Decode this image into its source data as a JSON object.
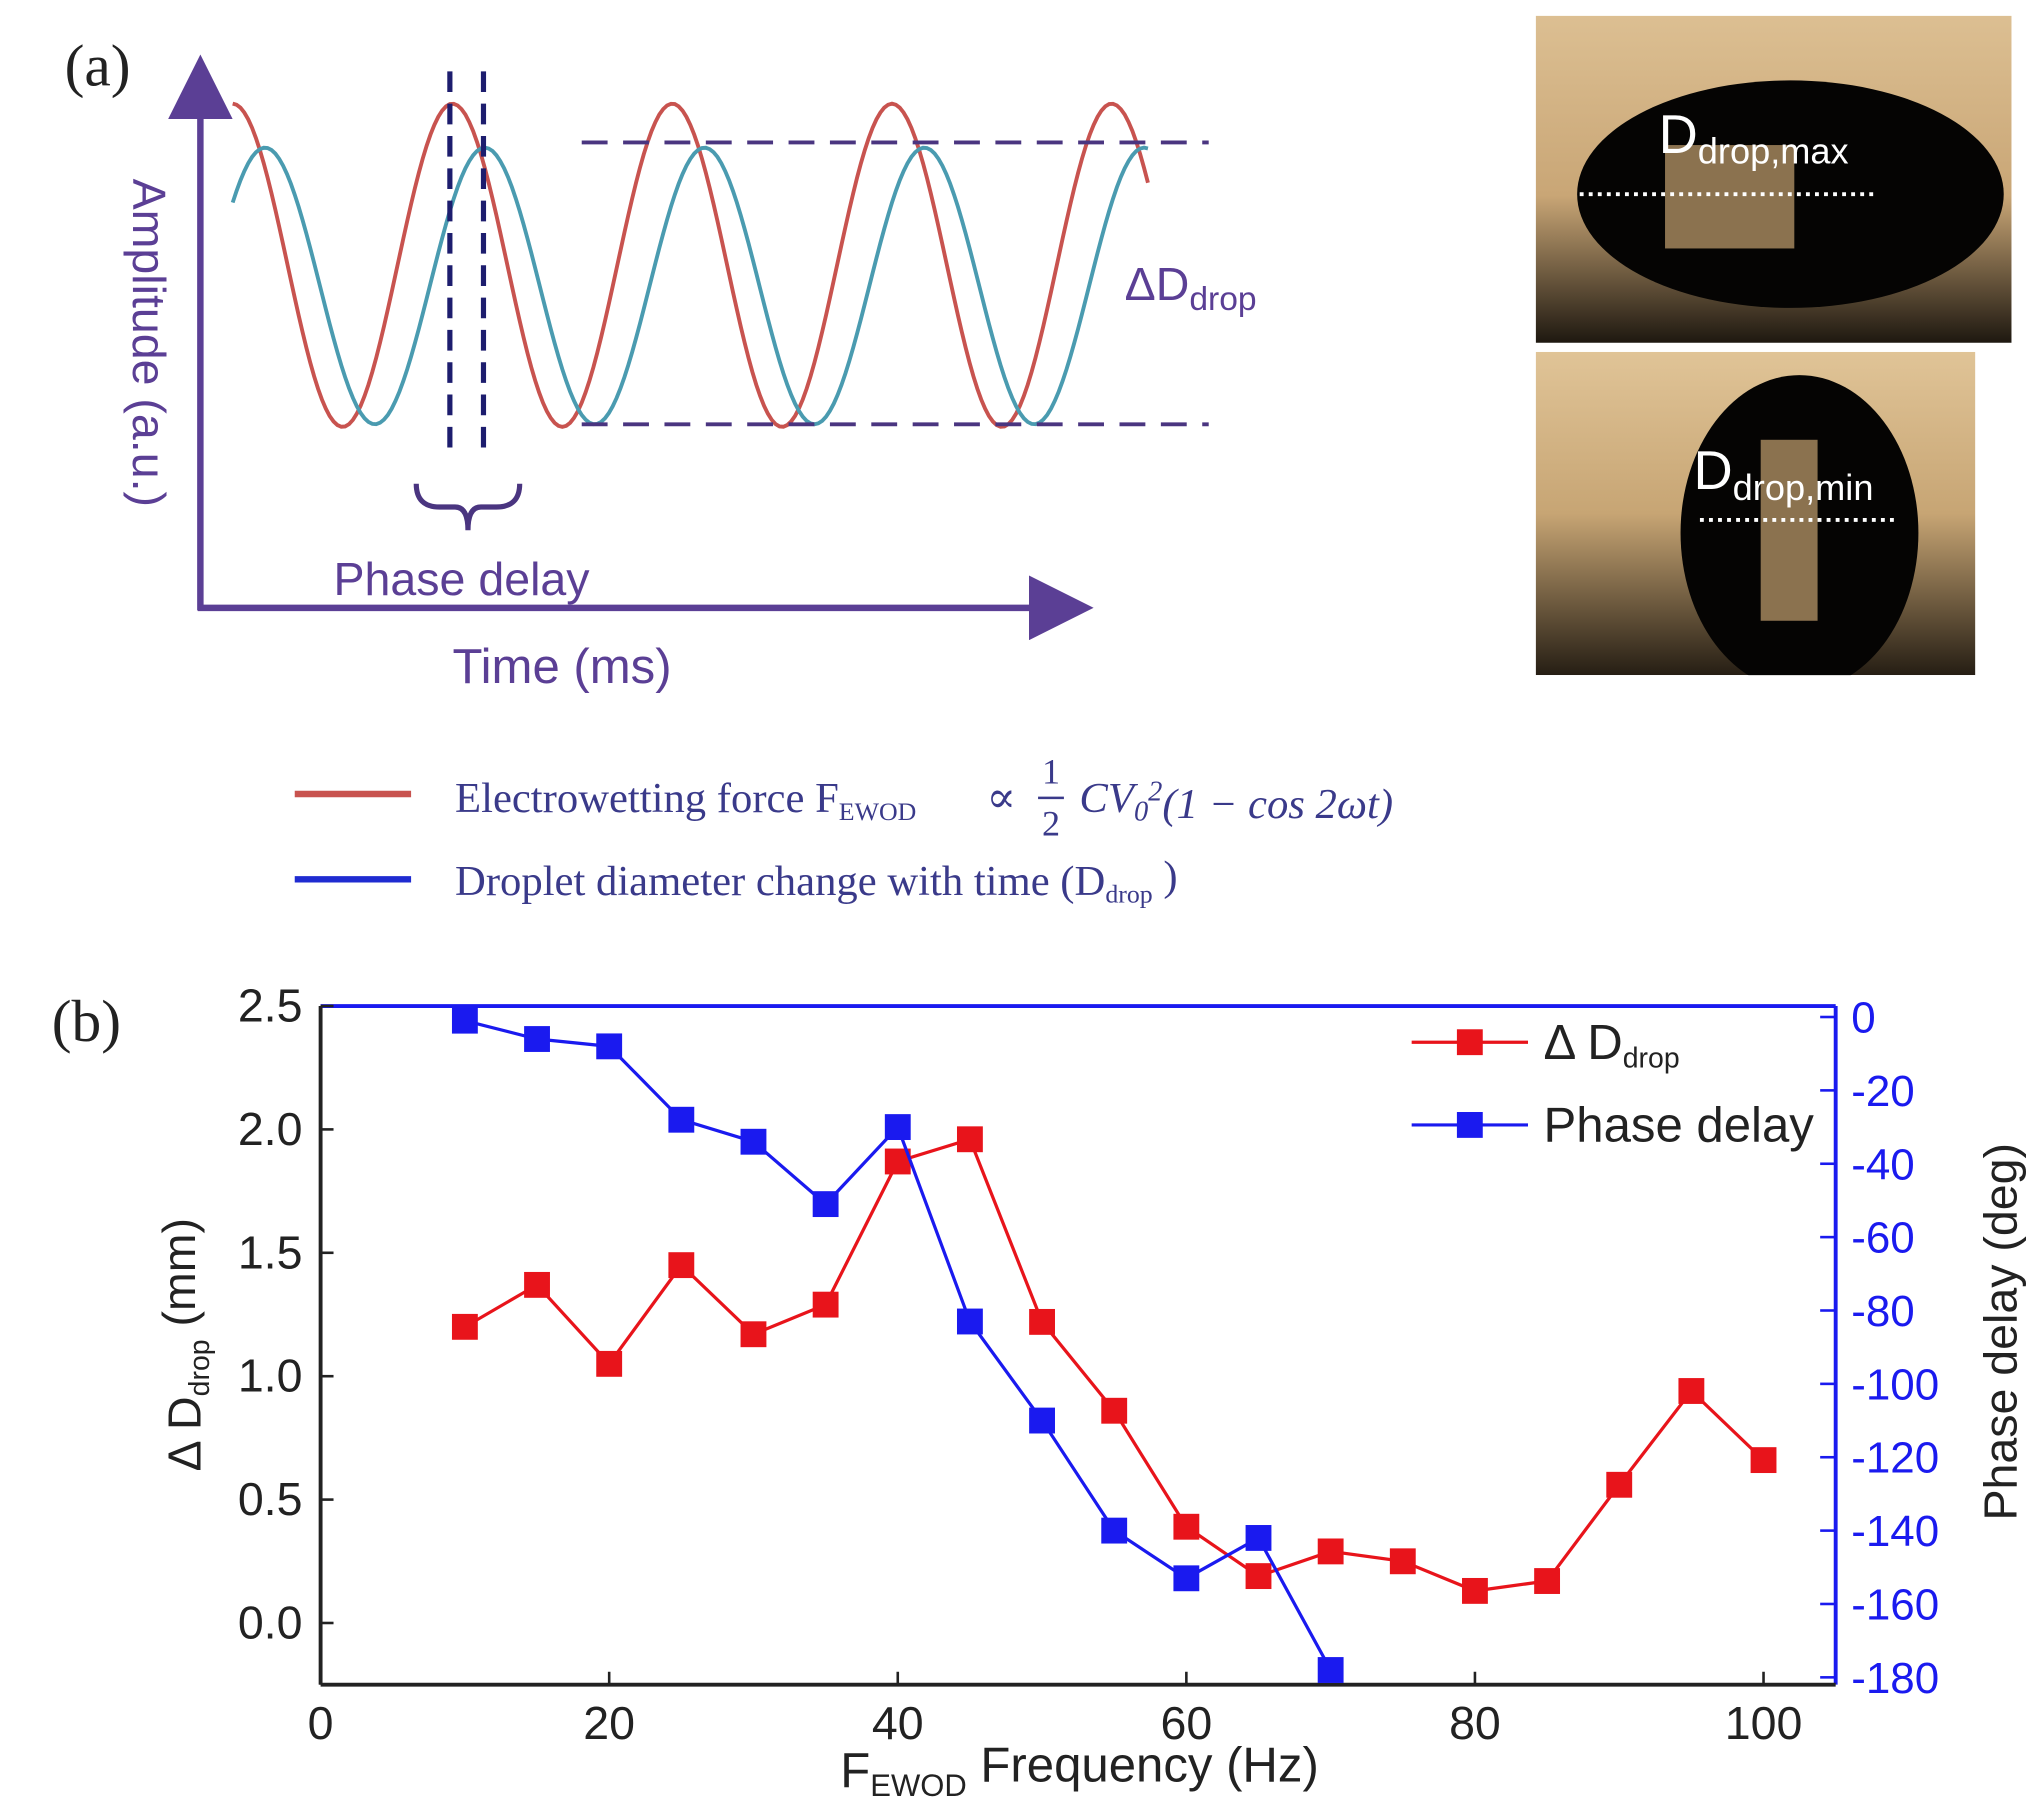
{
  "panel_a": {
    "label": "(a)",
    "y_label": "Amplitude (a.u.)",
    "x_label": "Time (ms)",
    "phase_label": "Phase delay",
    "delta": [
      "ΔD",
      "drop"
    ],
    "photo_max": [
      "D",
      "drop,max"
    ],
    "photo_min": [
      "D",
      "drop,min"
    ],
    "legend_force": {
      "text": "Electrowetting force F",
      "sub": "EWOD",
      "prop": "∝",
      "numerator": "1",
      "denominator": "2",
      "body": "CV",
      "body_sub": "0",
      "body_sup": "2",
      "tail": "(1 − cos 2ωt)"
    },
    "legend_drop": {
      "text": "Droplet diameter change with time (D",
      "sub": "drop",
      "tail": " )"
    }
  },
  "chart_data": {
    "type": "line",
    "panel_label": "(b)",
    "x_label": [
      "F",
      "EWOD",
      " Frequency (Hz)"
    ],
    "y_label": [
      "Δ D",
      "drop",
      " (mm)"
    ],
    "y2_label": "Phase delay (deg)",
    "xlim": [
      0,
      105
    ],
    "xticks": [
      0,
      20,
      40,
      60,
      80,
      100
    ],
    "ylim": [
      -0.25,
      2.5
    ],
    "yticks": [
      {
        "value": 0,
        "label": "0.0"
      },
      0.5,
      {
        "value": 1,
        "label": "1.0"
      },
      1.5,
      {
        "value": 2,
        "label": "2.0"
      },
      2.5
    ],
    "y2lim": [
      -182,
      3
    ],
    "y2ticks": [
      0,
      -20,
      -40,
      -60,
      -80,
      -100,
      -120,
      -140,
      -160,
      -180
    ],
    "legend": "upper right",
    "series": [
      {
        "name": "Δ D",
        "name_sub": "drop",
        "color": "#e8141b",
        "x": [
          10,
          15,
          20,
          25,
          30,
          35,
          40,
          45,
          50,
          55,
          60,
          65,
          70,
          75,
          80,
          85,
          90,
          95,
          100
        ],
        "values": [
          1.2,
          1.37,
          1.05,
          1.45,
          1.17,
          1.29,
          1.87,
          1.96,
          1.22,
          0.86,
          0.39,
          0.19,
          0.29,
          0.25,
          0.13,
          0.17,
          0.56,
          0.94,
          0.66
        ]
      },
      {
        "name": "Phase delay",
        "color": "#1a1aef",
        "axis": "y2",
        "x": [
          10,
          15,
          20,
          25,
          30,
          35,
          40,
          45,
          50,
          55,
          60,
          65,
          70
        ],
        "values": [
          -1,
          -6,
          -8,
          -28,
          -34,
          -51,
          -30,
          -83,
          -110,
          -140,
          -153,
          -142,
          -178
        ]
      }
    ]
  }
}
